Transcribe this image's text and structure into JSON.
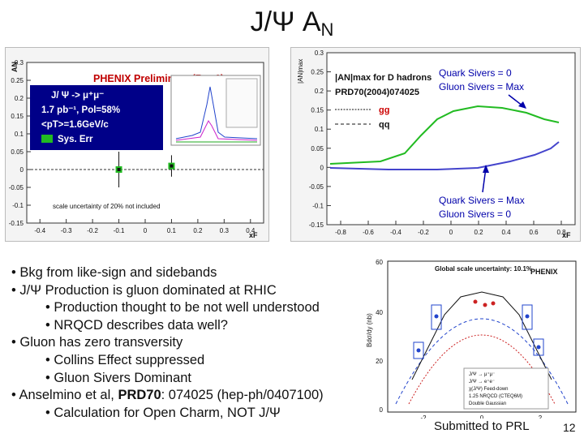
{
  "slide": {
    "title_main": "J/Ψ A",
    "title_sub": "N",
    "page_number": "12",
    "footer_note": "Submitted to PRL"
  },
  "left_plot": {
    "header": "PHENIX Preliminary (Run6)",
    "legend": [
      "J/ Ψ -> μ⁺μ⁻",
      "1.7 pb⁻¹, Pol=58%",
      "<pT>=1.6GeV/c",
      "Sys. Err"
    ],
    "ylabel": "AN",
    "xlabel": "xF",
    "note": "scale uncertainty of 20% not included",
    "y_ticks": [
      "0.3",
      "0.25",
      "0.2",
      "0.15",
      "0.1",
      "0.05",
      "0",
      "-0.05",
      "-0.1",
      "-0.15"
    ],
    "x_ticks": [
      "-0.4",
      "-0.3",
      "-0.2",
      "-0.1",
      "0",
      "0.1",
      "0.2",
      "0.3",
      "0.4"
    ],
    "points": [
      {
        "x": -0.1,
        "y": 0.0,
        "err": 0.05
      },
      {
        "x": 0.1,
        "y": 0.01,
        "err": 0.03
      }
    ],
    "colors": {
      "sys_err": "#22bb22",
      "header": "#c00000",
      "legend_text": "#ffffff",
      "bg": "#000088"
    }
  },
  "right_plot": {
    "ylabel": "|AN|max",
    "header_line1": "|AN|max for D hadrons",
    "header_line2": "PRD70(2004)074025",
    "legend_gg": "gg",
    "legend_qq": "qq",
    "annotation_top_line1": "Quark Sivers = 0",
    "annotation_top_line2": "Gluon Sivers = Max",
    "annotation_bottom_line1": "Quark Sivers = Max",
    "annotation_bottom_line2": "Gluon Sivers = 0",
    "xlabel": "xF",
    "y_ticks": [
      "0.3",
      "0.25",
      "0.2",
      "0.15",
      "0.1",
      "0.05",
      "0",
      "-0.05",
      "-0.1",
      "-0.15"
    ],
    "x_ticks": [
      "-0.8",
      "-0.6",
      "-0.4",
      "-0.2",
      "0",
      "0.2",
      "0.4",
      "0.6",
      "0.8"
    ]
  },
  "bottom_plot": {
    "header": "Global scale uncertainty: 10.1%",
    "logo": "PHENIX",
    "ylabel": "Bdσ/dy (nb)",
    "y_ticks": [
      "60",
      "40",
      "20",
      "0"
    ],
    "x_ticks": [
      "-2",
      "0",
      "2"
    ],
    "legend": [
      "J/Ψ → μ⁺μ⁻",
      "J/Ψ → e⁺e⁻",
      "χ(J/Ψ) Feed-down",
      "1.25 NRQCD (CTEQ6M)",
      "Double Gaussian"
    ]
  },
  "bullets": [
    {
      "text": "• Bkg from like-sign and sidebands",
      "indent": false
    },
    {
      "text": "• J/Ψ Production is gluon dominated at RHIC",
      "indent": false
    },
    {
      "text": "• Production thought to be not well understood",
      "indent": true
    },
    {
      "text": "• NRQCD describes data well?",
      "indent": true
    },
    {
      "text": "• Gluon has zero transversity",
      "indent": false
    },
    {
      "text": "• Collins Effect suppressed",
      "indent": true
    },
    {
      "text": "• Gluon Sivers Dominant",
      "indent": true
    },
    {
      "text_pre": "• Anselmino et al, ",
      "text_bold": "PRD70",
      "text_post": ": 074025 (hep-ph/0407100)",
      "indent": false
    },
    {
      "text": "• Calculation for Open Charm, NOT J/Ψ",
      "indent": true
    }
  ]
}
